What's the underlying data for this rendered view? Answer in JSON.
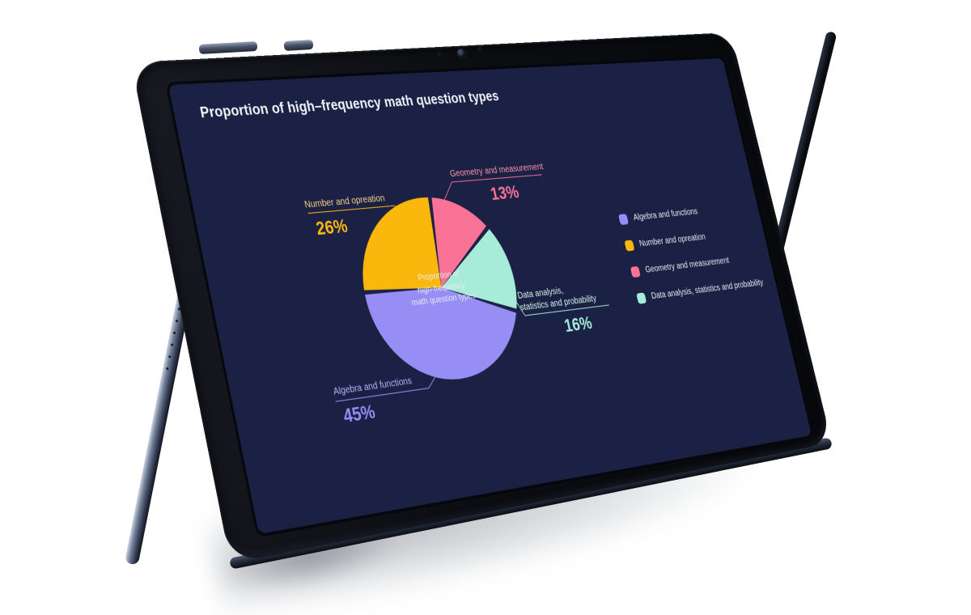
{
  "device": {
    "screen_background": "#1b2144",
    "frame_color": "#0b0d11"
  },
  "screen": {
    "title": "Proportion of high–frequency math question types"
  },
  "chart_data": {
    "type": "pie",
    "subtype": "donut",
    "title": "Proportion of high–frequency math question types",
    "center_label_lines": [
      "Proportion of",
      "high-frequency",
      "math question types"
    ],
    "series": [
      {
        "name": "Algebra and functions",
        "value": 45,
        "pct_label": "45%",
        "color": "#968ef5",
        "label_color": "#b6b0f9",
        "label_lines": [
          "Algebra and functions"
        ]
      },
      {
        "name": "Number and opreation",
        "value": 26,
        "pct_label": "26%",
        "color": "#fcb70d",
        "label_color": "#f6d389",
        "label_lines": [
          "Number and opreation"
        ]
      },
      {
        "name": "Geometry and measurement",
        "value": 13,
        "pct_label": "13%",
        "color": "#fa7295",
        "label_color": "#fb93ae",
        "label_lines": [
          "Geometry and measurement"
        ]
      },
      {
        "name": "Data analysis, statistics and probability",
        "value": 16,
        "pct_label": "16%",
        "color": "#a7ecd9",
        "label_color": "#d5f6ec",
        "label_lines": [
          "Data analysis,",
          "statistics and probability"
        ]
      }
    ],
    "legend": {
      "position": "right"
    },
    "layout": {
      "start_angle": 84,
      "clockwise": true,
      "draw_order": [
        2,
        3,
        0,
        1
      ],
      "pad_angle": 1.4,
      "outer_radius": 97,
      "donut_hole": true
    }
  }
}
